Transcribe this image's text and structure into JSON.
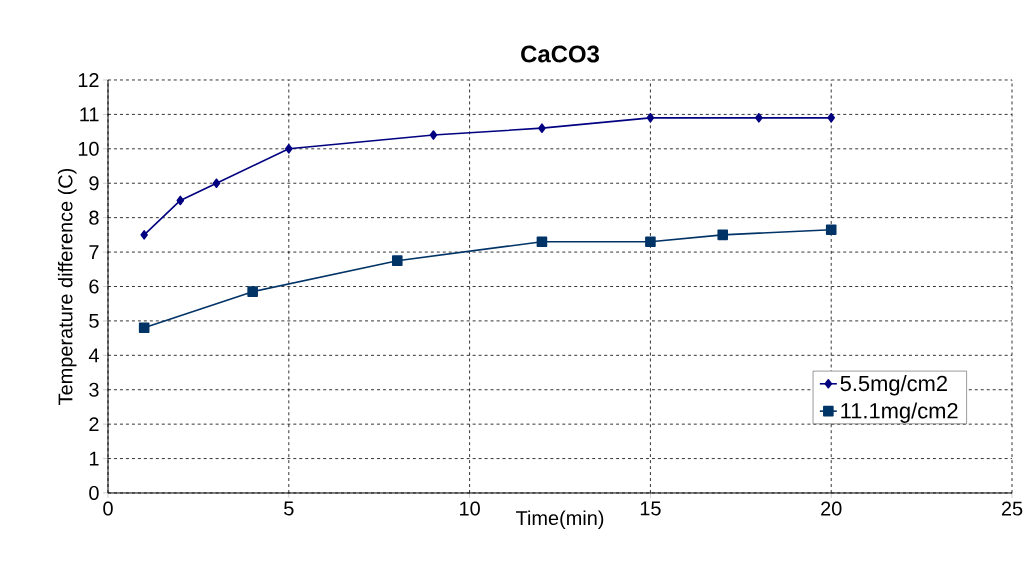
{
  "chart_data": {
    "type": "line",
    "title": "CaCO3",
    "xlabel": "Time(min)",
    "ylabel": "Temperature difference (C)",
    "xlim": [
      0,
      25
    ],
    "xticks": [
      0,
      5,
      10,
      15,
      20,
      25
    ],
    "ylim": [
      0,
      12
    ],
    "yticks": [
      0,
      1,
      2,
      3,
      4,
      5,
      6,
      7,
      8,
      9,
      10,
      11,
      12
    ],
    "grid": true,
    "legend": "right",
    "line_style": "solid",
    "series": [
      {
        "name": "5.5mg/cm2",
        "color": "#000080",
        "marker": "diamond",
        "x": [
          1,
          2,
          3,
          5,
          9,
          12,
          15,
          18,
          20
        ],
        "values": [
          7.5,
          8.5,
          9.0,
          10.0,
          10.4,
          10.6,
          10.9,
          10.9,
          10.9
        ]
      },
      {
        "name": "11.1mg/cm2",
        "color": "#003366",
        "marker": "square",
        "x": [
          1,
          4,
          8,
          12,
          15,
          17,
          20
        ],
        "values": [
          4.8,
          5.85,
          6.75,
          7.3,
          7.3,
          7.5,
          7.65
        ]
      }
    ]
  }
}
